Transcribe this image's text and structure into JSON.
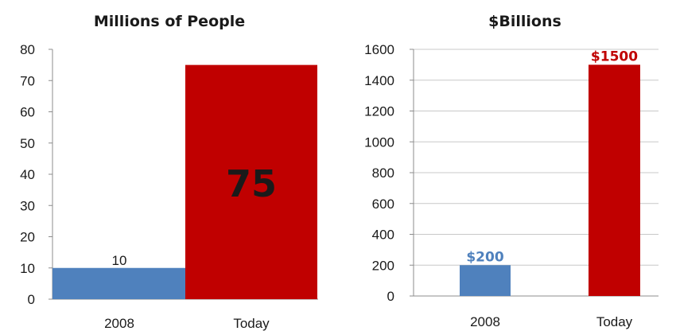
{
  "charts": [
    {
      "type": "bar",
      "title": "Millions of People",
      "categories": [
        "2008",
        "Today"
      ],
      "values": [
        10,
        75
      ],
      "data_labels": [
        "10",
        "75"
      ],
      "ylim": [
        0,
        80
      ],
      "yticks": [
        0,
        10,
        20,
        30,
        40,
        50,
        60,
        70,
        80
      ],
      "grid": false,
      "colors": [
        "#4f81bd",
        "#c00000"
      ],
      "label_colors": [
        "#1a1a1a",
        "#1a1a1a"
      ],
      "label_style": [
        "above",
        "inside-large"
      ]
    },
    {
      "type": "bar",
      "title": "$Billions",
      "categories": [
        "2008",
        "Today"
      ],
      "values": [
        200,
        1500
      ],
      "data_labels": [
        "$200",
        "$1500"
      ],
      "ylim": [
        0,
        1600
      ],
      "yticks": [
        0,
        200,
        400,
        600,
        800,
        1000,
        1200,
        1400,
        1600
      ],
      "grid": true,
      "colors": [
        "#4f81bd",
        "#c00000"
      ],
      "label_colors": [
        "#4f81bd",
        "#c00000"
      ],
      "label_style": [
        "above-bold",
        "above-bold"
      ]
    }
  ],
  "chart_data": [
    {
      "type": "bar",
      "title": "Millions of People",
      "categories": [
        "2008",
        "Today"
      ],
      "values": [
        10,
        75
      ],
      "ylim": [
        0,
        80
      ]
    },
    {
      "type": "bar",
      "title": "$Billions",
      "categories": [
        "2008",
        "Today"
      ],
      "values": [
        200,
        1500
      ],
      "ylim": [
        0,
        1600
      ]
    }
  ]
}
